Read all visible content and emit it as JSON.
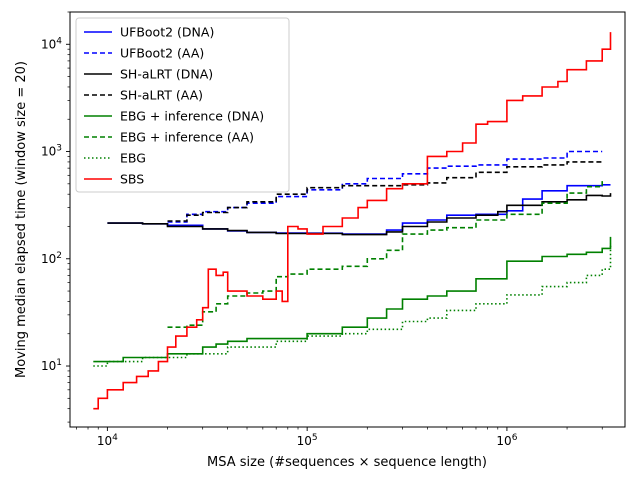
{
  "chart_data": {
    "type": "line",
    "title": "",
    "xlabel": "MSA size (#sequences × sequence length)",
    "ylabel": "Moving median elapsed time (window size = 20)",
    "x_scale": "log",
    "y_scale": "log",
    "xlim": [
      6500,
      3900000
    ],
    "ylim": [
      2.7,
      20000
    ],
    "grid": false,
    "legend_position": "top-left",
    "x_ticks": [
      {
        "value": 10000,
        "base": "10",
        "exp": "4"
      },
      {
        "value": 100000,
        "base": "10",
        "exp": "5"
      },
      {
        "value": 1000000,
        "base": "10",
        "exp": "6"
      }
    ],
    "y_ticks": [
      {
        "value": 10,
        "base": "10",
        "exp": "1"
      },
      {
        "value": 100,
        "base": "10",
        "exp": "2"
      },
      {
        "value": 1000,
        "base": "10",
        "exp": "3"
      },
      {
        "value": 10000,
        "base": "10",
        "exp": "4"
      }
    ],
    "series": [
      {
        "name": "UFBoot2 (DNA)",
        "color": "#0000ff",
        "dash": "solid",
        "points": [
          [
            10000,
            215
          ],
          [
            15000,
            212
          ],
          [
            20000,
            205
          ],
          [
            30000,
            190
          ],
          [
            40000,
            182
          ],
          [
            50000,
            176
          ],
          [
            70000,
            174
          ],
          [
            100000,
            173
          ],
          [
            150000,
            170
          ],
          [
            200000,
            170
          ],
          [
            250000,
            185
          ],
          [
            300000,
            215
          ],
          [
            400000,
            230
          ],
          [
            500000,
            255
          ],
          [
            700000,
            260
          ],
          [
            1000000,
            280
          ],
          [
            1200000,
            360
          ],
          [
            1500000,
            430
          ],
          [
            2000000,
            480
          ],
          [
            3000000,
            490
          ],
          [
            3300000,
            490
          ]
        ]
      },
      {
        "name": "UFBoot2 (AA)",
        "color": "#0000ff",
        "dash": "dashed",
        "points": [
          [
            20000,
            220
          ],
          [
            25000,
            260
          ],
          [
            30000,
            275
          ],
          [
            40000,
            300
          ],
          [
            50000,
            330
          ],
          [
            70000,
            380
          ],
          [
            100000,
            440
          ],
          [
            150000,
            500
          ],
          [
            200000,
            560
          ],
          [
            300000,
            620
          ],
          [
            400000,
            700
          ],
          [
            500000,
            730
          ],
          [
            700000,
            750
          ],
          [
            1000000,
            850
          ],
          [
            1500000,
            870
          ],
          [
            2000000,
            1000
          ],
          [
            3000000,
            1000
          ]
        ]
      },
      {
        "name": "SH-aLRT (DNA)",
        "color": "#000000",
        "dash": "solid",
        "points": [
          [
            10000,
            215
          ],
          [
            15000,
            212
          ],
          [
            20000,
            200
          ],
          [
            30000,
            190
          ],
          [
            40000,
            183
          ],
          [
            50000,
            176
          ],
          [
            70000,
            172
          ],
          [
            100000,
            172
          ],
          [
            150000,
            168
          ],
          [
            200000,
            168
          ],
          [
            250000,
            178
          ],
          [
            300000,
            200
          ],
          [
            400000,
            220
          ],
          [
            500000,
            240
          ],
          [
            700000,
            255
          ],
          [
            900000,
            275
          ],
          [
            1000000,
            315
          ],
          [
            1500000,
            340
          ],
          [
            2000000,
            355
          ],
          [
            2500000,
            390
          ],
          [
            3000000,
            385
          ],
          [
            3300000,
            410
          ]
        ]
      },
      {
        "name": "SH-aLRT (AA)",
        "color": "#000000",
        "dash": "dashed",
        "points": [
          [
            20000,
            225
          ],
          [
            25000,
            255
          ],
          [
            30000,
            270
          ],
          [
            40000,
            300
          ],
          [
            50000,
            340
          ],
          [
            70000,
            400
          ],
          [
            100000,
            460
          ],
          [
            150000,
            480
          ],
          [
            200000,
            480
          ],
          [
            300000,
            490
          ],
          [
            400000,
            510
          ],
          [
            500000,
            570
          ],
          [
            700000,
            640
          ],
          [
            1000000,
            720
          ],
          [
            1500000,
            750
          ],
          [
            2000000,
            800
          ],
          [
            3000000,
            800
          ]
        ]
      },
      {
        "name": "EBG + inference (DNA)",
        "color": "#008000",
        "dash": "solid",
        "points": [
          [
            8500,
            11
          ],
          [
            10000,
            11
          ],
          [
            12000,
            12
          ],
          [
            15000,
            12
          ],
          [
            20000,
            13
          ],
          [
            25000,
            13
          ],
          [
            30000,
            15
          ],
          [
            35000,
            16
          ],
          [
            40000,
            17
          ],
          [
            50000,
            18
          ],
          [
            70000,
            18
          ],
          [
            100000,
            20
          ],
          [
            150000,
            23
          ],
          [
            200000,
            28
          ],
          [
            250000,
            34
          ],
          [
            300000,
            42
          ],
          [
            400000,
            45
          ],
          [
            500000,
            50
          ],
          [
            700000,
            65
          ],
          [
            1000000,
            95
          ],
          [
            1500000,
            105
          ],
          [
            2000000,
            110
          ],
          [
            2500000,
            115
          ],
          [
            3000000,
            125
          ],
          [
            3300000,
            160
          ]
        ]
      },
      {
        "name": "EBG + inference (AA)",
        "color": "#008000",
        "dash": "dashed",
        "points": [
          [
            20000,
            23
          ],
          [
            25000,
            24
          ],
          [
            30000,
            32
          ],
          [
            35000,
            38
          ],
          [
            40000,
            45
          ],
          [
            50000,
            48
          ],
          [
            60000,
            50
          ],
          [
            70000,
            68
          ],
          [
            80000,
            72
          ],
          [
            100000,
            80
          ],
          [
            150000,
            85
          ],
          [
            200000,
            100
          ],
          [
            250000,
            120
          ],
          [
            300000,
            170
          ],
          [
            400000,
            185
          ],
          [
            500000,
            195
          ],
          [
            700000,
            230
          ],
          [
            1000000,
            260
          ],
          [
            1500000,
            330
          ],
          [
            2000000,
            410
          ],
          [
            2500000,
            470
          ],
          [
            3000000,
            530
          ]
        ]
      },
      {
        "name": "EBG",
        "color": "#008000",
        "dash": "dotted",
        "points": [
          [
            8500,
            10
          ],
          [
            10000,
            11
          ],
          [
            12000,
            11
          ],
          [
            15000,
            12
          ],
          [
            20000,
            12
          ],
          [
            25000,
            13
          ],
          [
            30000,
            13
          ],
          [
            40000,
            15
          ],
          [
            50000,
            15
          ],
          [
            70000,
            17
          ],
          [
            100000,
            19
          ],
          [
            150000,
            20
          ],
          [
            200000,
            22
          ],
          [
            300000,
            26
          ],
          [
            400000,
            28
          ],
          [
            500000,
            33
          ],
          [
            700000,
            38
          ],
          [
            1000000,
            46
          ],
          [
            1500000,
            55
          ],
          [
            2000000,
            60
          ],
          [
            2500000,
            70
          ],
          [
            3000000,
            80
          ],
          [
            3300000,
            140
          ]
        ]
      },
      {
        "name": "SBS",
        "color": "#ff0000",
        "dash": "solid",
        "points": [
          [
            8500,
            4
          ],
          [
            9000,
            5
          ],
          [
            10000,
            6
          ],
          [
            12000,
            7
          ],
          [
            14000,
            8
          ],
          [
            16000,
            9
          ],
          [
            18000,
            11
          ],
          [
            20000,
            15
          ],
          [
            22000,
            19
          ],
          [
            25000,
            23
          ],
          [
            28000,
            27
          ],
          [
            30000,
            35
          ],
          [
            32000,
            80
          ],
          [
            35000,
            70
          ],
          [
            38000,
            75
          ],
          [
            40000,
            50
          ],
          [
            50000,
            45
          ],
          [
            60000,
            42
          ],
          [
            70000,
            50
          ],
          [
            75000,
            40
          ],
          [
            80000,
            200
          ],
          [
            90000,
            190
          ],
          [
            100000,
            170
          ],
          [
            120000,
            200
          ],
          [
            150000,
            240
          ],
          [
            180000,
            300
          ],
          [
            200000,
            350
          ],
          [
            250000,
            450
          ],
          [
            300000,
            500
          ],
          [
            350000,
            500
          ],
          [
            400000,
            900
          ],
          [
            500000,
            1000
          ],
          [
            600000,
            1200
          ],
          [
            700000,
            1800
          ],
          [
            800000,
            1900
          ],
          [
            1000000,
            3000
          ],
          [
            1200000,
            3300
          ],
          [
            1500000,
            4000
          ],
          [
            1800000,
            4500
          ],
          [
            2000000,
            5800
          ],
          [
            2500000,
            7000
          ],
          [
            3000000,
            9000
          ],
          [
            3300000,
            13000
          ]
        ]
      }
    ]
  }
}
